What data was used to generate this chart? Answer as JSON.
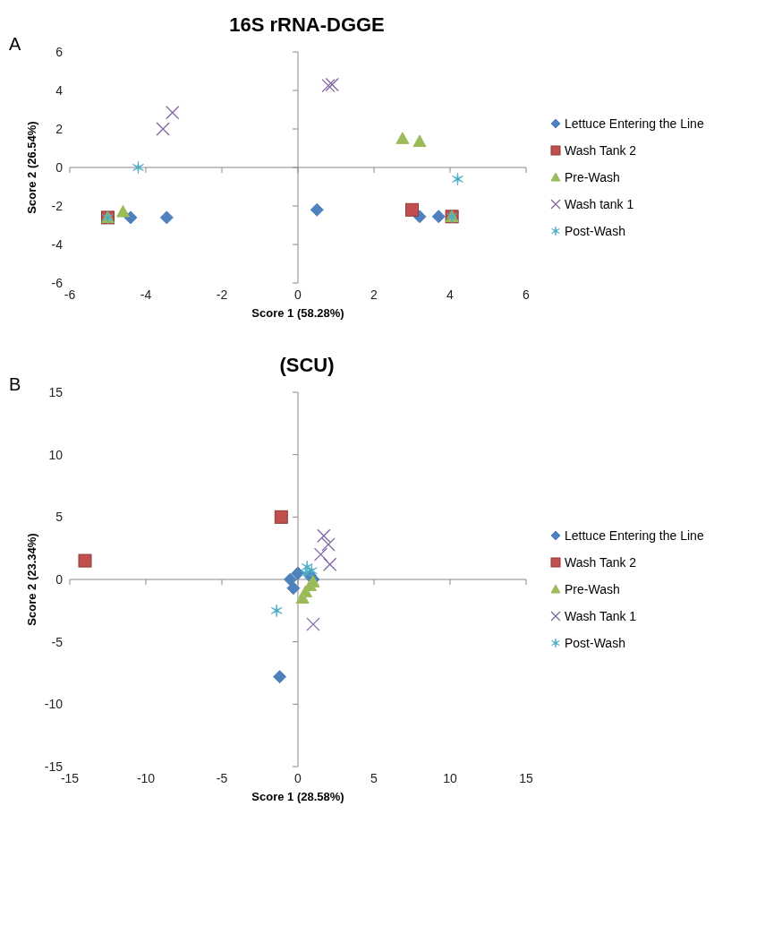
{
  "chart_data": [
    {
      "type": "scatter",
      "title": "16S rRNA-DGGE",
      "xlabel": "Score 1 (58.28%)",
      "ylabel": "Score 2 (26.54%)",
      "annotations": [
        "A"
      ],
      "xlim": [
        -6,
        6
      ],
      "xticks": [
        -6,
        -4,
        -2,
        0,
        2,
        4,
        6
      ],
      "ylim": [
        -6,
        6
      ],
      "yticks": [
        -6,
        -4,
        -2,
        0,
        2,
        4,
        6
      ],
      "legend": "right",
      "series": [
        {
          "name": "Lettuce Entering the Line",
          "color": "#4f81bd",
          "x": [
            -4.4,
            -3.45,
            0.5,
            3.2,
            3.7
          ],
          "values": [
            -2.6,
            -2.6,
            -2.2,
            -2.55,
            -2.55
          ]
        },
        {
          "name": "Wash Tank 2",
          "color": "#c0504d",
          "x": [
            -5.0,
            3.0,
            4.05
          ],
          "values": [
            -2.6,
            -2.2,
            -2.55
          ]
        },
        {
          "name": "Pre-Wash",
          "color": "#9bbb59",
          "x": [
            -5.0,
            -4.6,
            2.75,
            3.2,
            4.05
          ],
          "values": [
            -2.6,
            -2.3,
            1.5,
            1.35,
            -2.55
          ]
        },
        {
          "name": "Wash tank 1",
          "color": "#8064a2",
          "x": [
            -3.55,
            -3.3,
            0.8,
            0.9
          ],
          "values": [
            2.0,
            2.85,
            4.25,
            4.3
          ]
        },
        {
          "name": "Post-Wash",
          "color": "#4bacc6",
          "x": [
            -5.0,
            -4.2,
            4.05,
            4.2
          ],
          "values": [
            -2.6,
            0.0,
            -2.55,
            -0.6
          ]
        }
      ]
    },
    {
      "type": "scatter",
      "title": "(SCU)",
      "xlabel": "Score 1 (28.58%)",
      "ylabel": "Score 2 (23.34%)",
      "annotations": [
        "B"
      ],
      "xlim": [
        -15,
        15
      ],
      "xticks": [
        -15,
        -10,
        -5,
        0,
        5,
        10,
        15
      ],
      "ylim": [
        -15,
        15
      ],
      "yticks": [
        -15,
        -10,
        -5,
        0,
        5,
        10,
        15
      ],
      "legend": "right",
      "series": [
        {
          "name": "Lettuce Entering the Line",
          "color": "#4f81bd",
          "x": [
            -1.2,
            -0.5,
            0.0,
            1.0,
            -0.3,
            0.8
          ],
          "values": [
            -7.8,
            0.0,
            0.5,
            0.0,
            -0.7,
            0.3
          ]
        },
        {
          "name": "Wash Tank 2",
          "color": "#c0504d",
          "x": [
            -14.0,
            -1.1
          ],
          "values": [
            1.5,
            5.0
          ]
        },
        {
          "name": "Pre-Wash",
          "color": "#9bbb59",
          "x": [
            0.5,
            0.8,
            0.3,
            1.0
          ],
          "values": [
            -1.0,
            -0.5,
            -1.5,
            -0.2
          ]
        },
        {
          "name": "Wash Tank 1",
          "color": "#8064a2",
          "x": [
            1.7,
            2.0,
            1.5,
            2.1,
            1.0
          ],
          "values": [
            3.5,
            2.8,
            2.0,
            1.2,
            -3.6
          ]
        },
        {
          "name": "Post-Wash",
          "color": "#4bacc6",
          "x": [
            0.6,
            0.9,
            0.5,
            -1.4
          ],
          "values": [
            1.0,
            0.7,
            0.5,
            -2.5
          ]
        }
      ]
    }
  ]
}
